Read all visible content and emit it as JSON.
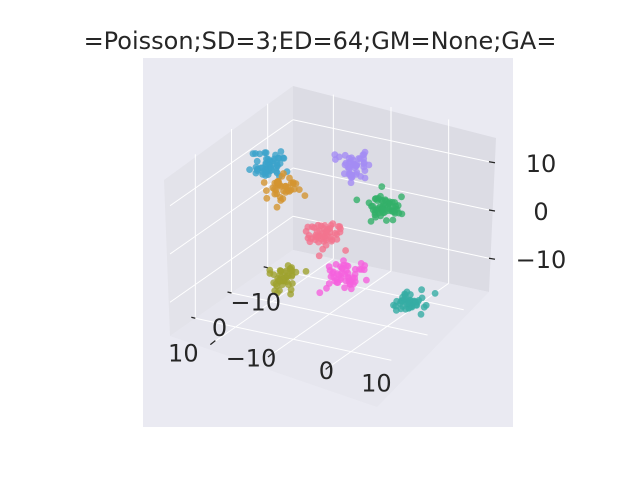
{
  "chart_data": {
    "type": "scatter",
    "projection": "3d",
    "title": "=Poisson;SD=3;ED=64;GM=None;GA=",
    "xlabel": "",
    "ylabel": "",
    "zlabel": "",
    "xlim": [
      -17,
      17
    ],
    "ylim": [
      -17,
      17
    ],
    "zlim": [
      -17,
      17
    ],
    "x_ticks": [
      -10,
      0,
      10
    ],
    "y_ticks": [
      -10,
      0,
      10
    ],
    "z_ticks": [
      -10,
      0,
      10
    ],
    "x_tick_labels": [
      "−10",
      "0",
      "10"
    ],
    "y_tick_labels": [
      "−10",
      "0",
      "10"
    ],
    "z_tick_labels": [
      "−10",
      "0",
      "10"
    ],
    "grid": true,
    "legend": "none",
    "style": {
      "axes_background": "#eaeaf2",
      "pane_left": "#e3e3ea",
      "pane_right": "#dcdce4",
      "pane_floor": "#e6e6ee",
      "grid_color": "#ffffff",
      "text_color": "#262626"
    },
    "clusters": [
      {
        "color": "#3ba3cb",
        "center": [
          -2,
          -12,
          10
        ],
        "spread": 1.3,
        "points": 55
      },
      {
        "color": "#d39531",
        "center": [
          3,
          -6,
          9
        ],
        "spread": 1.2,
        "points": 40
      },
      {
        "color": "#a48cf4",
        "center": [
          -13,
          -4,
          6
        ],
        "spread": 1.3,
        "points": 45
      },
      {
        "color": "#f3748f",
        "center": [
          5,
          2,
          3
        ],
        "spread": 1.3,
        "points": 50
      },
      {
        "color": "#33b069",
        "center": [
          -12,
          2,
          -1
        ],
        "spread": 1.3,
        "points": 55
      },
      {
        "color": "#9fa230",
        "center": [
          15,
          2,
          -1
        ],
        "spread": 1.3,
        "points": 45
      },
      {
        "color": "#f561dd",
        "center": [
          5,
          6,
          -5
        ],
        "spread": 1.3,
        "points": 50
      },
      {
        "color": "#36ada4",
        "center": [
          -3,
          12,
          -13
        ],
        "spread": 1.3,
        "points": 45
      }
    ]
  }
}
